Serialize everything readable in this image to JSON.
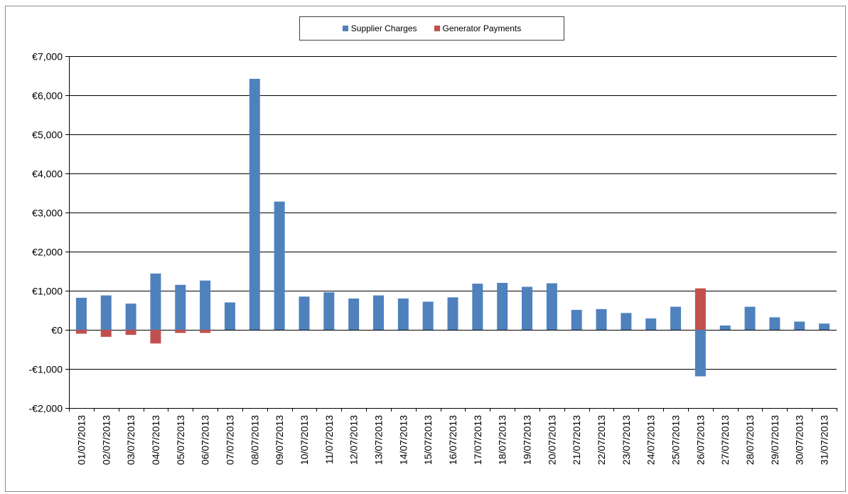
{
  "colors": {
    "supplier": "#4f81bd",
    "generator": "#c0504d",
    "grid": "#000000"
  },
  "chart_data": {
    "type": "bar",
    "title": "",
    "xlabel": "",
    "ylabel": "",
    "ylim": [
      -2000,
      7000
    ],
    "y_ticks": [
      -2000,
      -1000,
      0,
      1000,
      2000,
      3000,
      4000,
      5000,
      6000,
      7000
    ],
    "y_tick_labels": [
      "-€2,000",
      "-€1,000",
      "€0",
      "€1,000",
      "€2,000",
      "€3,000",
      "€4,000",
      "€5,000",
      "€6,000",
      "€7,000"
    ],
    "grid": true,
    "legend_position": "top-center",
    "categories": [
      "01/07/2013",
      "02/07/2013",
      "03/07/2013",
      "04/07/2013",
      "05/07/2013",
      "06/07/2013",
      "07/07/2013",
      "08/07/2013",
      "09/07/2013",
      "10/07/2013",
      "11/07/2013",
      "12/07/2013",
      "13/07/2013",
      "14/07/2013",
      "15/07/2013",
      "16/07/2013",
      "17/07/2013",
      "18/07/2013",
      "19/07/2013",
      "20/07/2013",
      "21/07/2013",
      "22/07/2013",
      "23/07/2013",
      "24/07/2013",
      "25/07/2013",
      "26/07/2013",
      "27/07/2013",
      "28/07/2013",
      "29/07/2013",
      "30/07/2013",
      "31/07/2013"
    ],
    "series": [
      {
        "name": "Supplier Charges",
        "values": [
          820,
          880,
          670,
          1440,
          1150,
          1260,
          700,
          6420,
          3280,
          850,
          960,
          800,
          880,
          800,
          720,
          830,
          1180,
          1200,
          1100,
          1190,
          510,
          530,
          430,
          290,
          590,
          -1190,
          110,
          590,
          320,
          210,
          160
        ]
      },
      {
        "name": "Generator Payments",
        "values": [
          -100,
          -180,
          -130,
          -350,
          -80,
          -80,
          0,
          0,
          0,
          0,
          0,
          0,
          0,
          0,
          0,
          0,
          0,
          0,
          0,
          0,
          0,
          0,
          0,
          0,
          0,
          1060,
          0,
          0,
          0,
          0,
          0
        ]
      }
    ]
  }
}
